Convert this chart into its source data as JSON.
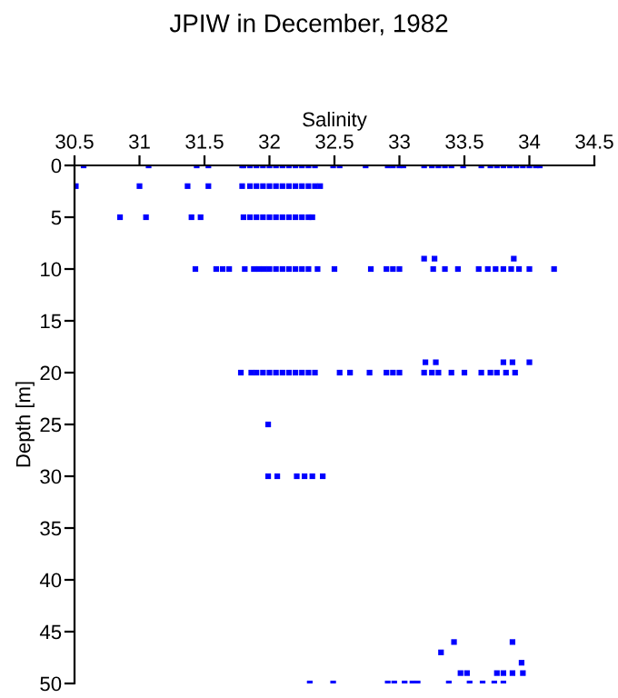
{
  "chart_data": {
    "type": "scatter",
    "title": "JPIW in December, 1982",
    "xlabel": "Salinity",
    "ylabel": "Depth [m]",
    "xlim": [
      30.5,
      34.5
    ],
    "xticks": [
      30.5,
      31,
      31.5,
      32,
      32.5,
      33,
      33.5,
      34,
      34.5
    ],
    "ylim": [
      50,
      0
    ],
    "yticks": [
      0,
      5,
      10,
      15,
      20,
      25,
      30,
      35,
      40,
      45,
      50
    ],
    "grid": false,
    "legend": false,
    "marker": "square",
    "series": [
      {
        "color": "#0000ff",
        "x": [
          30.57,
          31.07,
          31.44,
          31.53,
          31.79,
          31.8,
          31.85,
          31.9,
          31.95,
          32.0,
          32.05,
          32.1,
          32.15,
          32.2,
          32.25,
          32.3,
          32.35,
          32.49,
          32.54,
          32.74,
          32.91,
          32.95,
          33.0,
          33.03,
          33.19,
          33.25,
          33.3,
          33.35,
          33.4,
          33.49,
          33.63,
          33.7,
          33.75,
          33.8,
          33.85,
          33.9,
          33.95,
          34.0,
          34.05,
          34.08,
          30.51,
          31.0,
          31.37,
          31.53,
          31.79,
          31.85,
          31.9,
          31.95,
          32.0,
          32.05,
          32.1,
          32.15,
          32.2,
          32.25,
          32.3,
          32.35,
          32.39,
          30.85,
          31.05,
          31.4,
          31.47,
          31.8,
          31.85,
          31.9,
          31.95,
          32.0,
          32.05,
          32.1,
          32.15,
          32.2,
          32.25,
          32.3,
          32.33,
          33.19,
          33.27,
          33.88,
          31.43,
          31.59,
          31.64,
          31.69,
          31.81,
          31.88,
          31.92,
          31.96,
          32.0,
          32.05,
          32.1,
          32.15,
          32.2,
          32.25,
          32.3,
          32.37,
          32.5,
          32.78,
          32.9,
          32.95,
          33.0,
          33.26,
          33.35,
          33.45,
          33.61,
          33.68,
          33.74,
          33.8,
          33.86,
          33.92,
          34.0,
          34.19,
          33.2,
          33.28,
          33.8,
          33.87,
          34.0,
          31.78,
          31.86,
          31.9,
          31.95,
          32.0,
          32.05,
          32.1,
          32.15,
          32.2,
          32.25,
          32.3,
          32.35,
          32.54,
          32.62,
          32.77,
          32.9,
          32.95,
          33.0,
          33.19,
          33.25,
          33.3,
          33.4,
          33.5,
          33.63,
          33.7,
          33.75,
          33.82,
          33.89,
          31.99,
          31.99,
          32.06,
          32.21,
          32.27,
          32.33,
          32.41,
          33.42,
          33.87,
          33.32,
          33.94,
          33.47,
          33.52,
          33.75,
          33.8,
          33.87,
          33.95,
          32.31,
          32.49,
          32.91,
          32.96,
          33.04,
          33.1,
          33.14,
          33.38,
          33.54,
          33.64,
          33.73,
          33.8
        ],
        "values": [
          0,
          0,
          0,
          0,
          0,
          0,
          0,
          0,
          0,
          0,
          0,
          0,
          0,
          0,
          0,
          0,
          0,
          0,
          0,
          0,
          0,
          0,
          0,
          0,
          0,
          0,
          0,
          0,
          0,
          0,
          0,
          0,
          0,
          0,
          0,
          0,
          0,
          0,
          0,
          0,
          2,
          2,
          2,
          2,
          2,
          2,
          2,
          2,
          2,
          2,
          2,
          2,
          2,
          2,
          2,
          2,
          2,
          5,
          5,
          5,
          5,
          5,
          5,
          5,
          5,
          5,
          5,
          5,
          5,
          5,
          5,
          5,
          5,
          9,
          9,
          9,
          10,
          10,
          10,
          10,
          10,
          10,
          10,
          10,
          10,
          10,
          10,
          10,
          10,
          10,
          10,
          10,
          10,
          10,
          10,
          10,
          10,
          10,
          10,
          10,
          10,
          10,
          10,
          10,
          10,
          10,
          10,
          10,
          19,
          19,
          19,
          19,
          19,
          20,
          20,
          20,
          20,
          20,
          20,
          20,
          20,
          20,
          20,
          20,
          20,
          20,
          20,
          20,
          20,
          20,
          20,
          20,
          20,
          20,
          20,
          20,
          20,
          20,
          20,
          20,
          20,
          25,
          30,
          30,
          30,
          30,
          30,
          30,
          46,
          46,
          47,
          48,
          49,
          49,
          49,
          49,
          49,
          49,
          50,
          50,
          50,
          50,
          50,
          50,
          50,
          50,
          50,
          50,
          50,
          50
        ]
      }
    ]
  }
}
